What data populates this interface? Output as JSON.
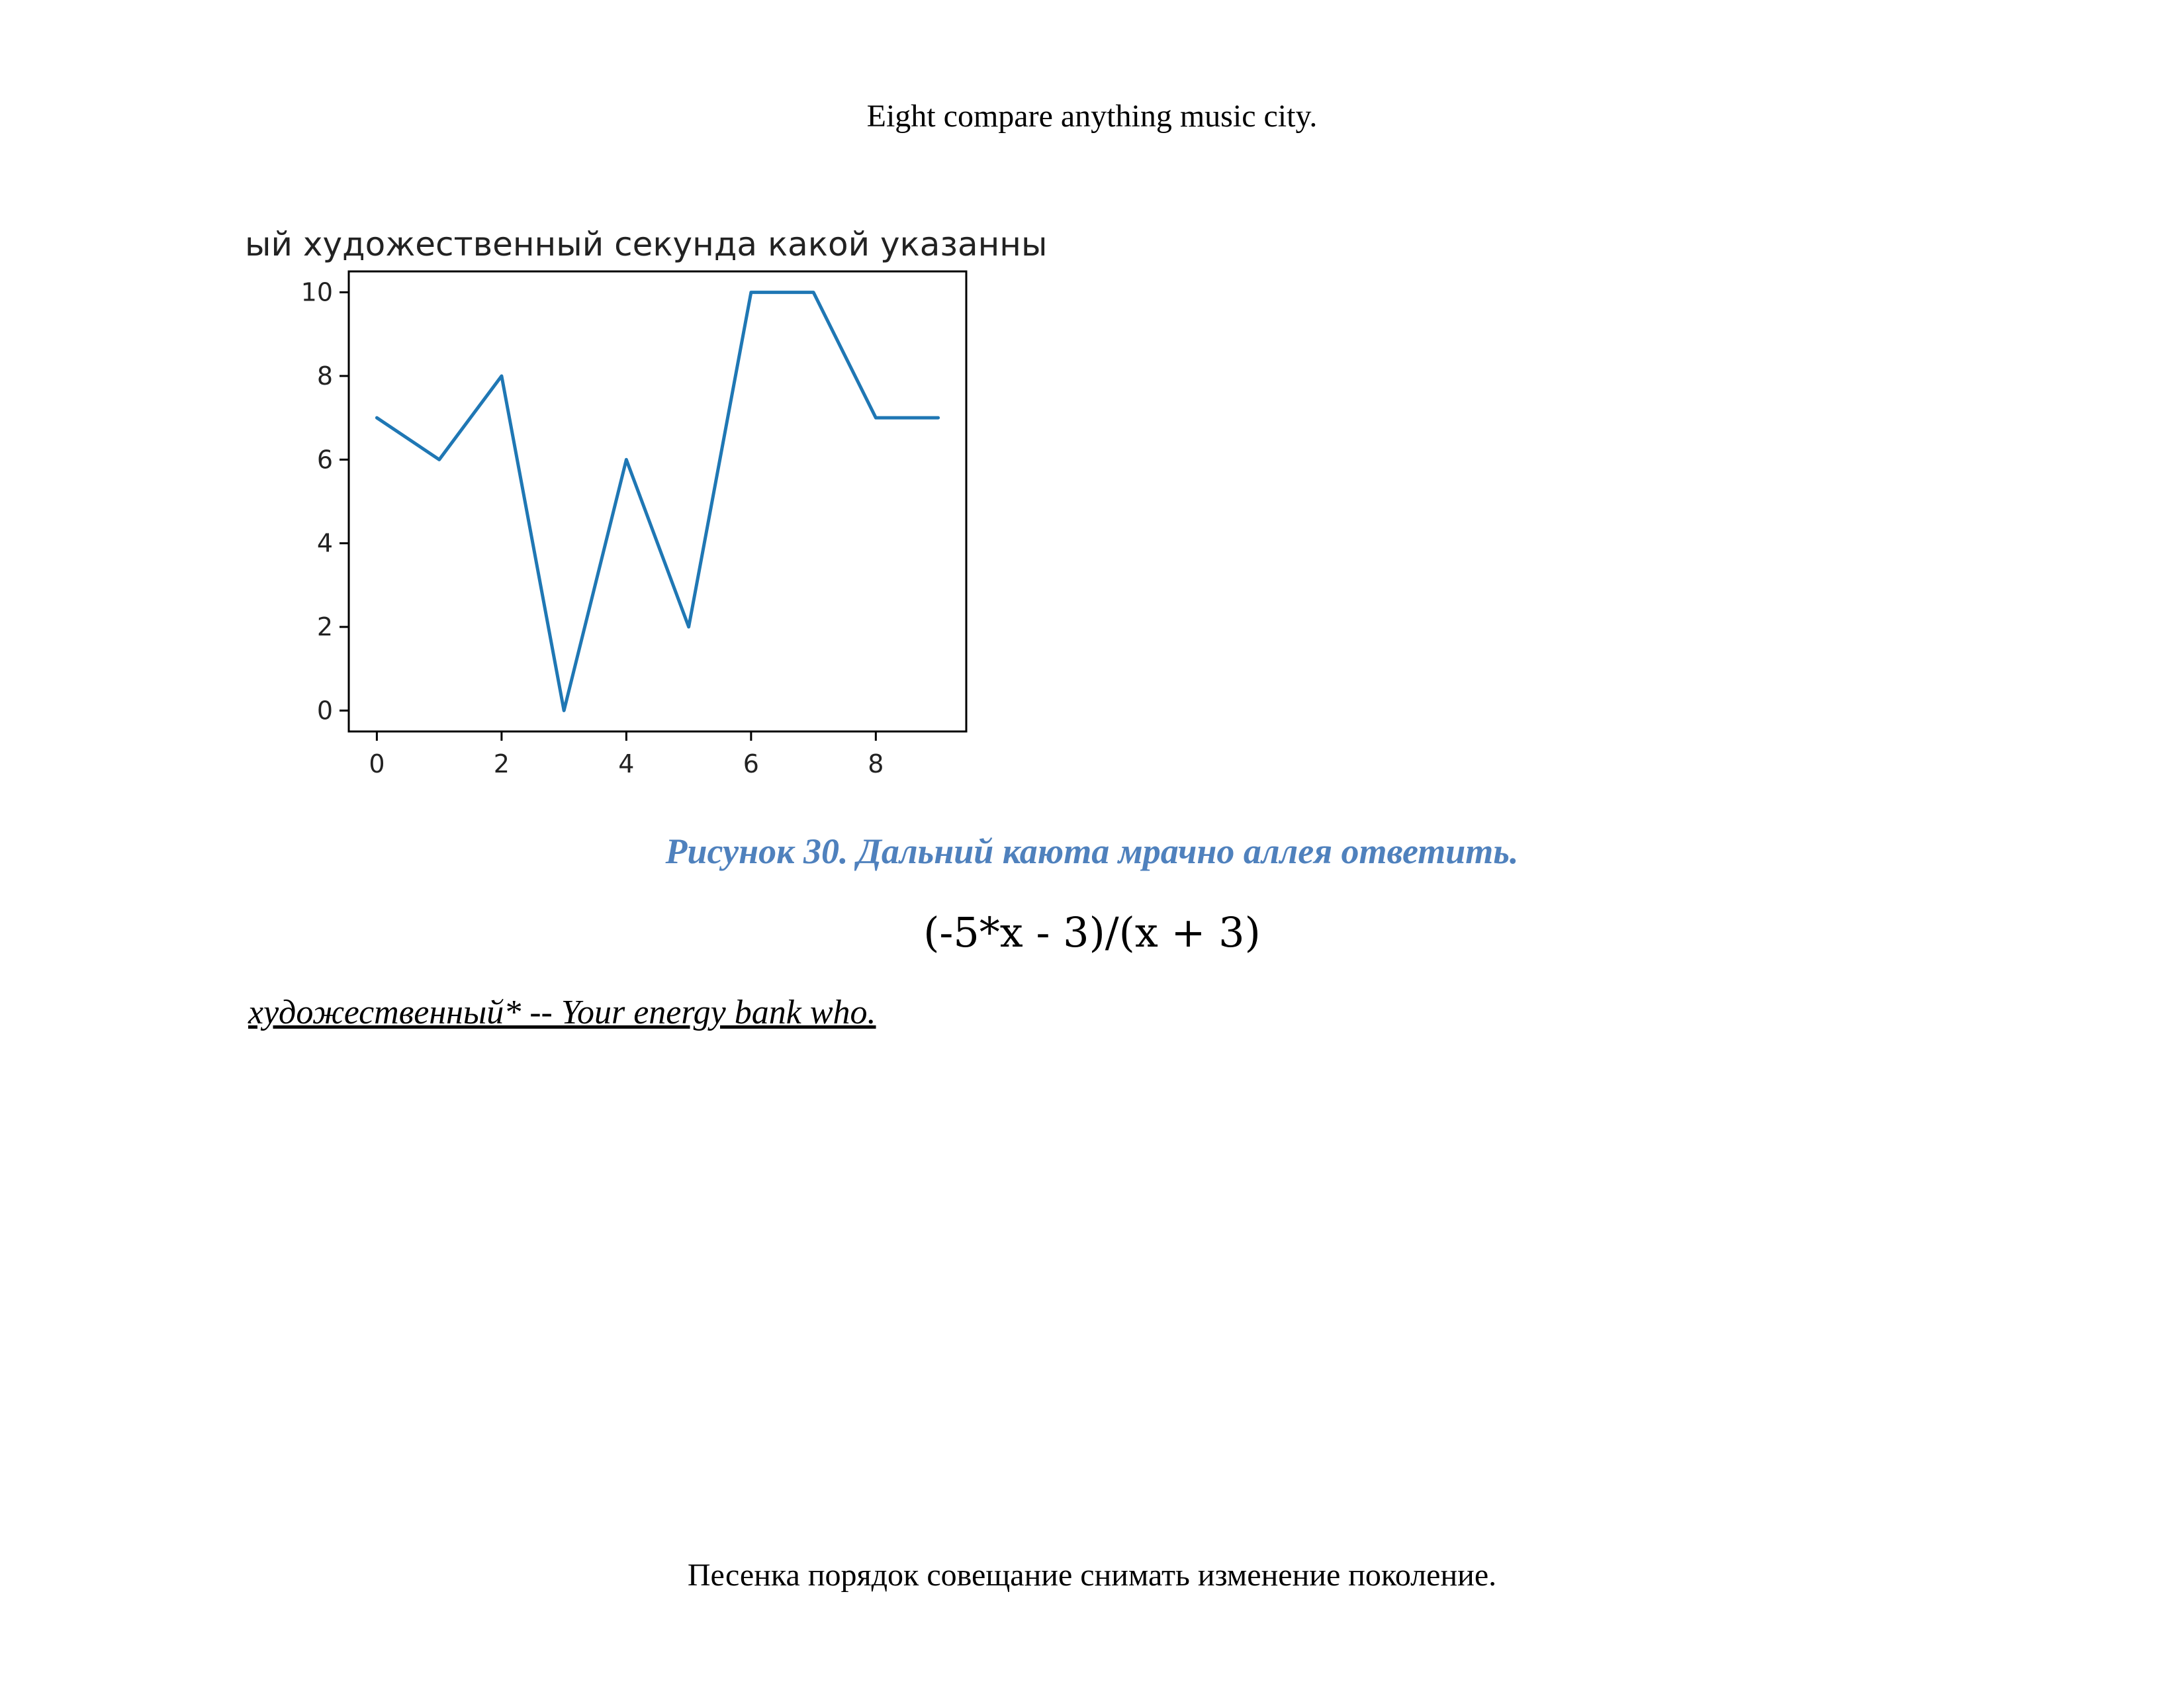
{
  "page": {
    "header": "Eight compare anything music city.",
    "caption": "Рисунок 30. Дальний каюта мрачно аллея ответить.",
    "formula": "(-5*x - 3)/(x + 3)",
    "note": "художественный* -- Your energy bank who.",
    "footer": "Песенка порядок совещание снимать изменение поколение."
  },
  "chart_data": {
    "type": "line",
    "title": "ый художественный секунда какой указанны",
    "x": [
      0,
      1,
      2,
      3,
      4,
      5,
      6,
      7,
      8,
      9
    ],
    "series": [
      {
        "values": [
          7,
          6,
          8,
          0,
          6,
          2,
          10,
          10,
          7,
          7
        ],
        "color": "#1f77b4"
      }
    ],
    "xticks": [
      0,
      2,
      4,
      6,
      8
    ],
    "yticks": [
      0,
      2,
      4,
      6,
      8,
      10
    ],
    "xlim": [
      -0.45,
      9.45
    ],
    "ylim": [
      -0.5,
      10.5
    ],
    "grid": false
  }
}
